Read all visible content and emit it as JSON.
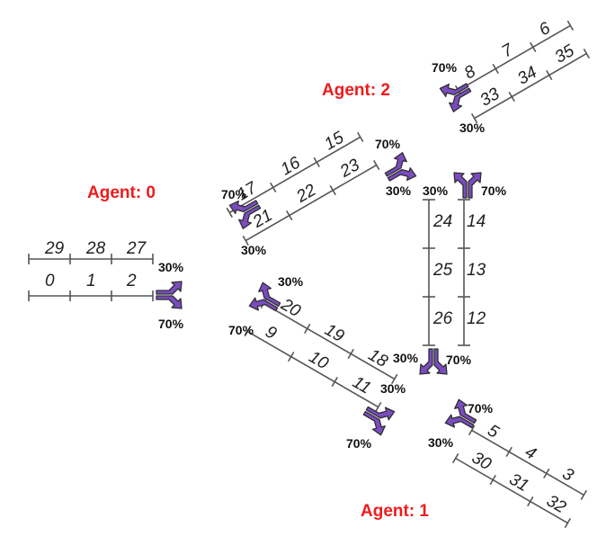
{
  "agents": [
    {
      "label": "Agent: 0"
    },
    {
      "label": "Agent: 1"
    },
    {
      "label": "Agent: 2"
    }
  ],
  "cells": {
    "c0": "0",
    "c1": "1",
    "c2": "2",
    "c3": "3",
    "c4": "4",
    "c5": "5",
    "c6": "6",
    "c7": "7",
    "c8": "8",
    "c9": "9",
    "c10": "10",
    "c11": "11",
    "c12": "12",
    "c13": "13",
    "c14": "14",
    "c15": "15",
    "c16": "16",
    "c17": "17",
    "c18": "18",
    "c19": "19",
    "c20": "20",
    "c21": "21",
    "c22": "22",
    "c23": "23",
    "c24": "24",
    "c25": "25",
    "c26": "26",
    "c27": "27",
    "c28": "28",
    "c29": "29",
    "c30": "30",
    "c31": "31",
    "c32": "32",
    "c33": "33",
    "c34": "34",
    "c35": "35"
  },
  "turn_split": {
    "major": "70%",
    "minor": "30%"
  },
  "colors": {
    "agent_label": "#ee1c1c",
    "arrow_fill": "#7a4cc0",
    "road_line": "#555555"
  }
}
